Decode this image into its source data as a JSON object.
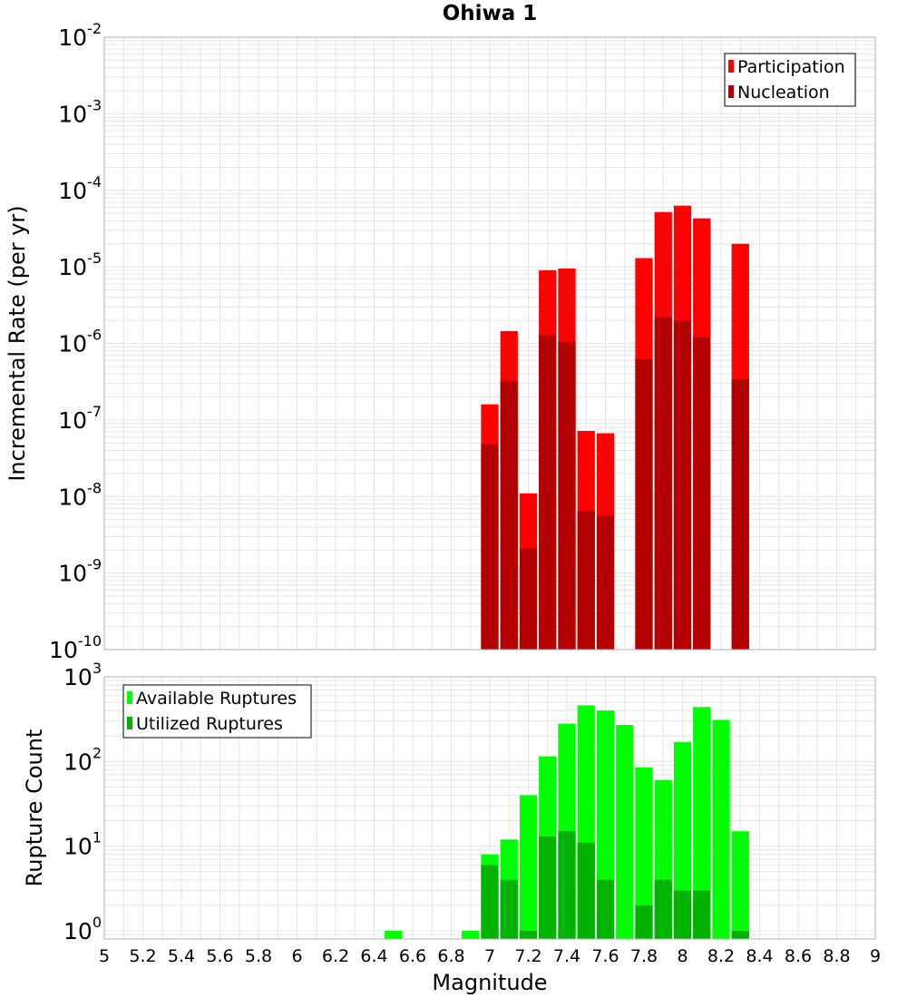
{
  "chart_data": [
    {
      "type": "bar",
      "title": "Ohiwa 1",
      "ylabel": "Incremental Rate (per yr)",
      "yscale": "log",
      "ylim": [
        1e-10,
        0.01
      ],
      "y_tick_mantissa": "10",
      "y_tick_exponents": [
        "-10",
        "-9",
        "-8",
        "-7",
        "-6",
        "-5",
        "-4",
        "-3",
        "-2"
      ],
      "xlim": [
        5,
        9
      ],
      "legend_position": "top-right",
      "grid": true,
      "x": [
        7.0,
        7.1,
        7.2,
        7.3,
        7.4,
        7.5,
        7.6,
        7.8,
        7.9,
        8.0,
        8.1,
        8.3
      ],
      "series": [
        {
          "name": "Participation",
          "color": "#ff0000",
          "values": [
            1.6e-07,
            1.45e-06,
            1.1e-08,
            9e-06,
            9.5e-06,
            7.2e-08,
            6.7e-08,
            1.3e-05,
            5.2e-05,
            6.3e-05,
            4.3e-05,
            2e-05
          ]
        },
        {
          "name": "Nucleation",
          "color": "#b30000",
          "values": [
            4.8e-08,
            3.2e-07,
            2.1e-09,
            1.3e-06,
            1.05e-06,
            6.5e-09,
            5.6e-09,
            6.2e-07,
            2.2e-06,
            2e-06,
            1.2e-06,
            3.4e-07
          ]
        }
      ]
    },
    {
      "type": "bar",
      "ylabel": "Rupture Count",
      "xlabel": "Magnitude",
      "yscale": "log",
      "ylim": [
        0.8,
        1000
      ],
      "y_tick_mantissa": "10",
      "y_tick_exponents": [
        "0",
        "1",
        "2",
        "3"
      ],
      "xlim": [
        5,
        9
      ],
      "x_ticks": [
        "5",
        "5.2",
        "5.4",
        "5.6",
        "5.8",
        "6",
        "6.2",
        "6.4",
        "6.6",
        "6.8",
        "7",
        "7.2",
        "7.4",
        "7.6",
        "7.8",
        "8",
        "8.2",
        "8.4",
        "8.6",
        "8.8",
        "9"
      ],
      "legend_position": "top-left",
      "grid": true,
      "x": [
        6.5,
        6.9,
        7.0,
        7.1,
        7.2,
        7.3,
        7.4,
        7.5,
        7.6,
        7.7,
        7.8,
        7.9,
        8.0,
        8.1,
        8.2,
        8.3
      ],
      "series": [
        {
          "name": "Available Ruptures",
          "color": "#00ff00",
          "values": [
            1,
            1,
            8,
            12,
            40,
            115,
            280,
            460,
            400,
            270,
            85,
            60,
            170,
            440,
            310,
            15
          ]
        },
        {
          "name": "Utilized Ruptures",
          "color": "#00b300",
          "values": [
            null,
            null,
            6,
            4,
            1,
            13,
            15,
            11,
            4,
            null,
            2,
            4,
            3,
            3,
            null,
            1
          ]
        }
      ]
    }
  ]
}
